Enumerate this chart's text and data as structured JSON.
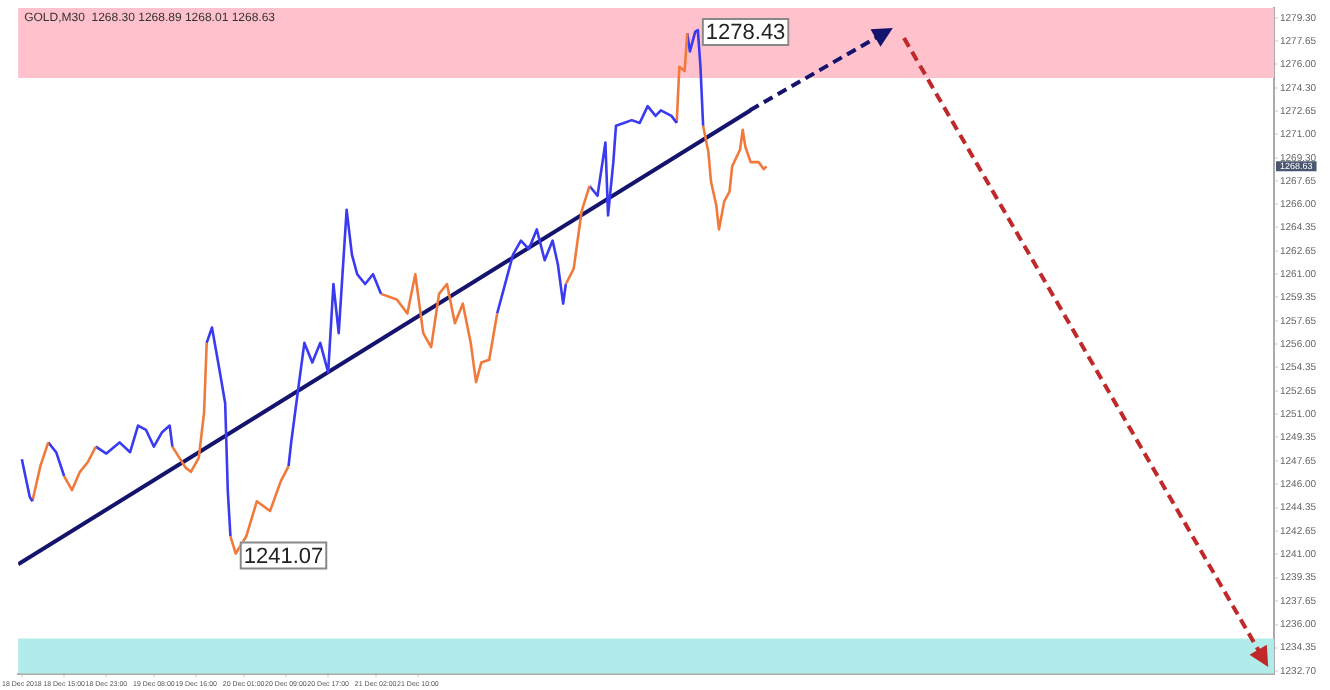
{
  "chart_data": {
    "type": "line",
    "title": "GOLD,M30  1268.30 1268.89 1268.01 1268.63",
    "xlim": [
      "2018-12-18T06:18",
      "2018-12-28T04:06"
    ],
    "ylim": [
      1232.5,
      1280.0
    ],
    "xticks": [
      {
        "value": "2018-12-18T07:00",
        "label": "18 Dec 2018"
      },
      {
        "value": "2018-12-18T15:00",
        "label": "18 Dec 15:00"
      },
      {
        "value": "2018-12-18T23:00",
        "label": "18 Dec 23:00"
      },
      {
        "value": "2018-12-19T08:00",
        "label": "19 Dec 08:00"
      },
      {
        "value": "2018-12-19T16:00",
        "label": "19 Dec 16:00"
      },
      {
        "value": "2018-12-20T01:00",
        "label": "20 Dec 01:00"
      },
      {
        "value": "2018-12-20T09:00",
        "label": "20 Dec 09:00"
      },
      {
        "value": "2018-12-20T17:00",
        "label": "20 Dec 17:00"
      },
      {
        "value": "2018-12-21T02:00",
        "label": "21 Dec 02:00"
      },
      {
        "value": "2018-12-21T10:00",
        "label": "21 Dec 10:00"
      }
    ],
    "yticks": [
      {
        "value": 1279.3,
        "label": "1279.30"
      },
      {
        "value": 1277.65,
        "label": "1277.65"
      },
      {
        "value": 1276.0,
        "label": "1276.00"
      },
      {
        "value": 1274.3,
        "label": "1274.30"
      },
      {
        "value": 1272.65,
        "label": "1272.65"
      },
      {
        "value": 1271.0,
        "label": "1271.00"
      },
      {
        "value": 1269.3,
        "label": "1269.30"
      },
      {
        "value": 1267.65,
        "label": "1267.65"
      },
      {
        "value": 1266.0,
        "label": "1266.00"
      },
      {
        "value": 1264.35,
        "label": "1264.35"
      },
      {
        "value": 1262.65,
        "label": "1262.65"
      },
      {
        "value": 1261.0,
        "label": "1261.00"
      },
      {
        "value": 1259.35,
        "label": "1259.35"
      },
      {
        "value": 1257.65,
        "label": "1257.65"
      },
      {
        "value": 1256.0,
        "label": "1256.00"
      },
      {
        "value": 1254.35,
        "label": "1254.35"
      },
      {
        "value": 1252.65,
        "label": "1252.65"
      },
      {
        "value": 1251.0,
        "label": "1251.00"
      },
      {
        "value": 1249.35,
        "label": "1249.35"
      },
      {
        "value": 1247.65,
        "label": "1247.65"
      },
      {
        "value": 1246.0,
        "label": "1246.00"
      },
      {
        "value": 1244.35,
        "label": "1244.35"
      },
      {
        "value": 1242.65,
        "label": "1242.65"
      },
      {
        "value": 1241.0,
        "label": "1241.00"
      },
      {
        "value": 1239.35,
        "label": "1239.35"
      },
      {
        "value": 1237.65,
        "label": "1237.65"
      },
      {
        "value": 1236.0,
        "label": "1236.00"
      },
      {
        "value": 1234.35,
        "label": "1234.35"
      },
      {
        "value": 1232.7,
        "label": "1232.70"
      }
    ],
    "grid": false,
    "legend": false,
    "marker": "none",
    "bands": [
      {
        "axis": "y",
        "from": 1275.0,
        "to": 1280.0,
        "color": "#ffc1cc"
      },
      {
        "axis": "y",
        "from": 1232.5,
        "to": 1235.0,
        "color": "#b1ecea"
      }
    ],
    "annotations": [
      {
        "text": "1241.07",
        "x": "2018-12-19T23:30",
        "y": 1241.07
      },
      {
        "text": "1278.43",
        "x": "2018-12-23T15:00",
        "y": 1278.43
      },
      "1268.63"
    ],
    "series": [
      {
        "color": "#3a3af0",
        "x": [
          "2018-12-18T07:00",
          "2018-12-18T08:30",
          "2018-12-18T09:00"
        ],
        "values": [
          1247.8,
          1245.1,
          1244.8
        ]
      },
      {
        "color": "#f07a3c",
        "x": [
          "2018-12-18T09:00",
          "2018-12-18T10:30",
          "2018-12-18T12:00"
        ],
        "values": [
          1244.8,
          1247.3,
          1249.0
        ]
      },
      {
        "color": "#3a3af0",
        "x": [
          "2018-12-18T12:00",
          "2018-12-18T13:30",
          "2018-12-18T15:00"
        ],
        "values": [
          1249.0,
          1248.3,
          1246.6
        ]
      },
      {
        "color": "#f07a3c",
        "x": [
          "2018-12-18T15:00",
          "2018-12-18T16:30",
          "2018-12-18T18:00",
          "2018-12-18T19:30",
          "2018-12-18T21:00"
        ],
        "values": [
          1246.6,
          1245.6,
          1246.9,
          1247.6,
          1248.7
        ]
      },
      {
        "color": "#3a3af0",
        "x": [
          "2018-12-18T21:00",
          "2018-12-18T23:00",
          "2018-12-19T01:30",
          "2018-12-19T03:30",
          "2018-12-19T05:00",
          "2018-12-19T06:30",
          "2018-12-19T08:00",
          "2018-12-19T09:30",
          "2018-12-19T11:00",
          "2018-12-19T11:30"
        ],
        "values": [
          1248.7,
          1248.2,
          1249.0,
          1248.3,
          1250.2,
          1249.9,
          1248.7,
          1249.7,
          1250.2,
          1248.7
        ]
      },
      {
        "color": "#f07a3c",
        "x": [
          "2018-12-19T11:30",
          "2018-12-19T14:00",
          "2018-12-19T15:00",
          "2018-12-19T16:30",
          "2018-12-19T17:30",
          "2018-12-19T18:00"
        ],
        "values": [
          1248.7,
          1247.2,
          1246.9,
          1247.9,
          1251.1,
          1256.1
        ]
      },
      {
        "color": "#3a3af0",
        "x": [
          "2018-12-19T18:00",
          "2018-12-19T19:00",
          "2018-12-19T20:30",
          "2018-12-19T21:30",
          "2018-12-19T22:00",
          "2018-12-19T22:30"
        ],
        "values": [
          1256.1,
          1257.2,
          1254.0,
          1251.8,
          1245.5,
          1242.3
        ]
      },
      {
        "color": "#f07a3c",
        "x": [
          "2018-12-19T22:30",
          "2018-12-19T23:30",
          "2018-12-20T01:30",
          "2018-12-20T03:30",
          "2018-12-20T06:00",
          "2018-12-20T08:00",
          "2018-12-20T09:30"
        ],
        "values": [
          1242.3,
          1241.07,
          1242.3,
          1244.8,
          1244.1,
          1246.2,
          1247.3
        ]
      },
      {
        "color": "#3a3af0",
        "x": [
          "2018-12-20T09:30",
          "2018-12-20T10:00",
          "2018-12-20T11:30",
          "2018-12-20T12:30",
          "2018-12-20T14:00",
          "2018-12-20T15:30",
          "2018-12-20T17:00",
          "2018-12-20T18:00",
          "2018-12-20T19:00",
          "2018-12-20T20:30",
          "2018-12-20T21:30",
          "2018-12-20T22:30",
          "2018-12-21T00:00",
          "2018-12-21T01:30",
          "2018-12-21T03:00"
        ],
        "values": [
          1247.3,
          1249.0,
          1253.3,
          1256.1,
          1254.7,
          1256.1,
          1254.0,
          1260.3,
          1256.8,
          1265.6,
          1262.4,
          1261.0,
          1260.3,
          1261.0,
          1259.6
        ]
      },
      {
        "color": "#f07a3c",
        "x": [
          "2018-12-21T03:00",
          "2018-12-21T06:00",
          "2018-12-21T08:00",
          "2018-12-21T09:30",
          "2018-12-21T11:00",
          "2018-12-21T12:30",
          "2018-12-21T14:00",
          "2018-12-21T15:30",
          "2018-12-21T17:00",
          "2018-12-21T18:30",
          "2018-12-21T20:00",
          "2018-12-21T21:00",
          "2018-12-21T22:00",
          "2018-12-21T23:30",
          "2018-12-22T01:00"
        ],
        "values": [
          1259.6,
          1259.2,
          1258.2,
          1261.0,
          1256.8,
          1255.8,
          1259.6,
          1260.3,
          1257.5,
          1258.9,
          1256.1,
          1253.3,
          1254.7,
          1254.9,
          1258.2
        ]
      },
      {
        "color": "#3a3af0",
        "x": [
          "2018-12-22T01:00",
          "2018-12-22T02:30",
          "2018-12-22T04:00",
          "2018-12-22T05:30",
          "2018-12-22T07:00",
          "2018-12-22T08:30",
          "2018-12-22T10:00",
          "2018-12-22T11:30",
          "2018-12-22T12:30",
          "2018-12-22T13:30",
          "2018-12-22T14:00"
        ],
        "values": [
          1258.2,
          1260.3,
          1262.4,
          1263.4,
          1262.8,
          1264.2,
          1262.0,
          1263.4,
          1261.7,
          1258.9,
          1260.3
        ]
      },
      {
        "color": "#f07a3c",
        "x": [
          "2018-12-22T14:00",
          "2018-12-22T15:30",
          "2018-12-22T17:00",
          "2018-12-22T18:30"
        ],
        "values": [
          1260.3,
          1261.4,
          1265.5,
          1267.3
        ]
      },
      {
        "color": "#3a3af0",
        "x": [
          "2018-12-22T18:30",
          "2018-12-22T20:00",
          "2018-12-22T21:30",
          "2018-12-22T22:00",
          "2018-12-22T23:00",
          "2018-12-22T23:30",
          "2018-12-23T01:00",
          "2018-12-23T02:30",
          "2018-12-23T04:00",
          "2018-12-23T05:30",
          "2018-12-23T07:00",
          "2018-12-23T08:00",
          "2018-12-23T10:00",
          "2018-12-23T11:00"
        ],
        "values": [
          1267.3,
          1266.6,
          1270.4,
          1265.2,
          1269.0,
          1271.6,
          1271.8,
          1272.0,
          1271.8,
          1273.0,
          1272.3,
          1272.7,
          1272.3,
          1271.8
        ]
      },
      {
        "color": "#f07a3c",
        "x": [
          "2018-12-23T11:00",
          "2018-12-23T11:30",
          "2018-12-23T12:30",
          "2018-12-23T13:00"
        ],
        "values": [
          1271.8,
          1275.8,
          1275.5,
          1278.2
        ]
      },
      {
        "color": "#3a3af0",
        "x": [
          "2018-12-23T13:00",
          "2018-12-23T13:30",
          "2018-12-23T14:30",
          "2018-12-23T15:00",
          "2018-12-23T15:30",
          "2018-12-23T16:00"
        ],
        "values": [
          1278.2,
          1276.9,
          1278.3,
          1278.43,
          1275.8,
          1271.6
        ]
      },
      {
        "color": "#f07a3c",
        "x": [
          "2018-12-23T16:00",
          "2018-12-23T17:00",
          "2018-12-23T17:30",
          "2018-12-23T18:30",
          "2018-12-23T19:00",
          "2018-12-23T20:00",
          "2018-12-23T21:00",
          "2018-12-23T21:30",
          "2018-12-23T23:00",
          "2018-12-23T23:30",
          "2018-12-24T00:00",
          "2018-12-24T01:00",
          "2018-12-24T02:30",
          "2018-12-24T03:30",
          "2018-12-24T04:00"
        ],
        "values": [
          1271.6,
          1269.7,
          1267.6,
          1265.9,
          1264.2,
          1266.2,
          1266.9,
          1268.7,
          1269.9,
          1271.3,
          1270.1,
          1269.0,
          1269.0,
          1268.5,
          1268.7
        ]
      },
      {
        "color": "#14146e",
        "line_style": "solid",
        "x": [
          "2018-12-18T06:18",
          "2018-12-24T01:00"
        ],
        "values": [
          1240.3,
          1272.7
        ]
      }
    ]
  }
}
